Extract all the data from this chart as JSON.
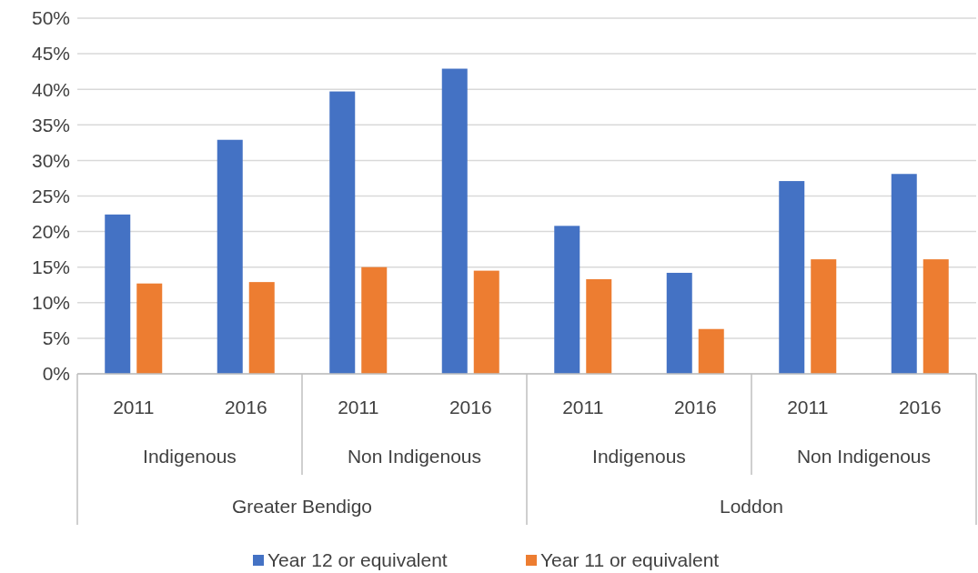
{
  "chart_data": {
    "type": "bar",
    "categories": [
      "2011",
      "2016",
      "2011",
      "2016",
      "2011",
      "2016",
      "2011",
      "2016"
    ],
    "annotations": [
      "Indigenous",
      "Non Indigenous",
      "Indigenous",
      "Non Indigenous",
      "Greater Bendigo",
      "Loddon"
    ],
    "series": [
      {
        "name": "Year 12 or equivalent",
        "color": "#4472c4",
        "values": [
          22.4,
          32.9,
          39.7,
          42.9,
          20.8,
          14.2,
          27.1,
          28.1
        ]
      },
      {
        "name": "Year 11 or equivalent",
        "color": "#ed7d31",
        "values": [
          12.7,
          12.9,
          15.0,
          14.5,
          13.3,
          6.3,
          16.1,
          16.1
        ]
      }
    ],
    "ylim": [
      0,
      50
    ],
    "yticks": [
      {
        "value": 0,
        "label": "0%"
      },
      {
        "value": 5,
        "label": "5%"
      },
      {
        "value": 10,
        "label": "10%"
      },
      {
        "value": 15,
        "label": "15%"
      },
      {
        "value": 20,
        "label": "20%"
      },
      {
        "value": 25,
        "label": "25%"
      },
      {
        "value": 30,
        "label": "30%"
      },
      {
        "value": 35,
        "label": "35%"
      },
      {
        "value": 40,
        "label": "40%"
      },
      {
        "value": 45,
        "label": "45%"
      },
      {
        "value": 50,
        "label": "50%"
      }
    ],
    "grid": "y",
    "legend": "bottom"
  }
}
